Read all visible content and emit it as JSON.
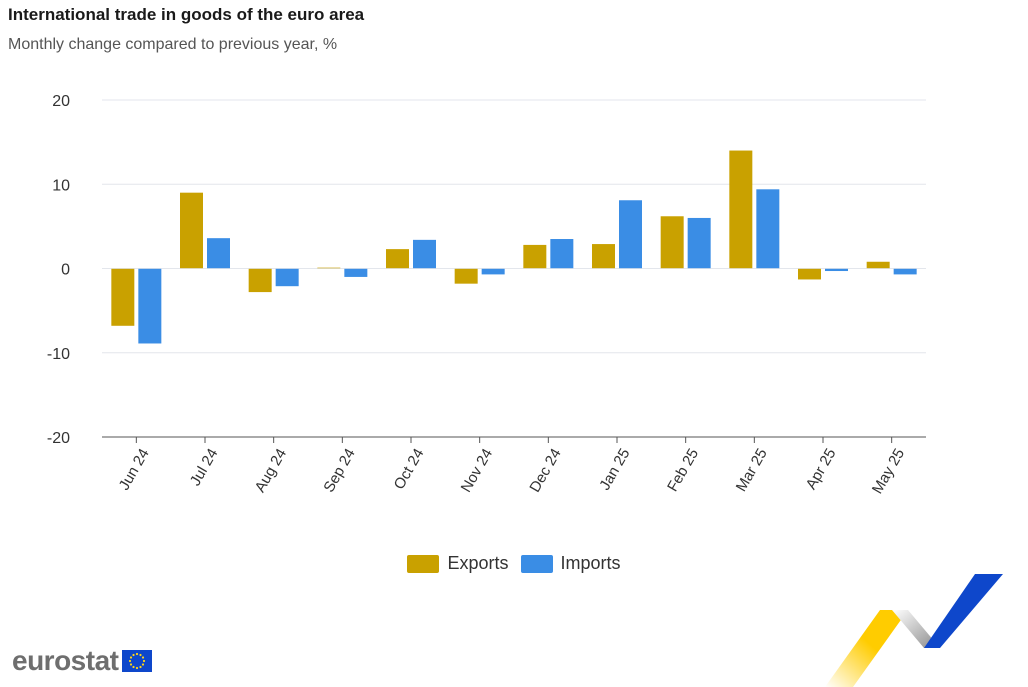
{
  "title": "International trade in goods of the euro area",
  "subtitle": "Monthly change compared to previous year, %",
  "chart_data": {
    "type": "bar",
    "categories": [
      "Jun 24",
      "Jul 24",
      "Aug 24",
      "Sep 24",
      "Oct 24",
      "Nov 24",
      "Dec 24",
      "Jan 25",
      "Feb 25",
      "Mar 25",
      "Apr 25",
      "May 25"
    ],
    "series": [
      {
        "name": "Exports",
        "color": "#c9a100",
        "values": [
          -6.8,
          9.0,
          -2.8,
          0.1,
          2.3,
          -1.8,
          2.8,
          2.9,
          6.2,
          14.0,
          -1.3,
          0.8
        ]
      },
      {
        "name": "Imports",
        "color": "#3a8de5",
        "values": [
          -8.9,
          3.6,
          -2.1,
          -1.0,
          3.4,
          -0.7,
          3.5,
          8.1,
          6.0,
          9.4,
          -0.3,
          -0.7
        ]
      }
    ],
    "ylim": [
      -20,
      20
    ],
    "yticks": [
      20,
      10,
      0,
      -10,
      -20
    ],
    "xlabel": "",
    "ylabel": "",
    "legend_position": "bottom-center"
  },
  "legend": {
    "items": [
      {
        "label": "Exports",
        "color": "#c9a100"
      },
      {
        "label": "Imports",
        "color": "#3a8de5"
      }
    ]
  },
  "logo": {
    "text": "eurostat"
  },
  "icons": {
    "flag": "eu-flag-icon",
    "decor": "ribbon-decoration-icon"
  }
}
